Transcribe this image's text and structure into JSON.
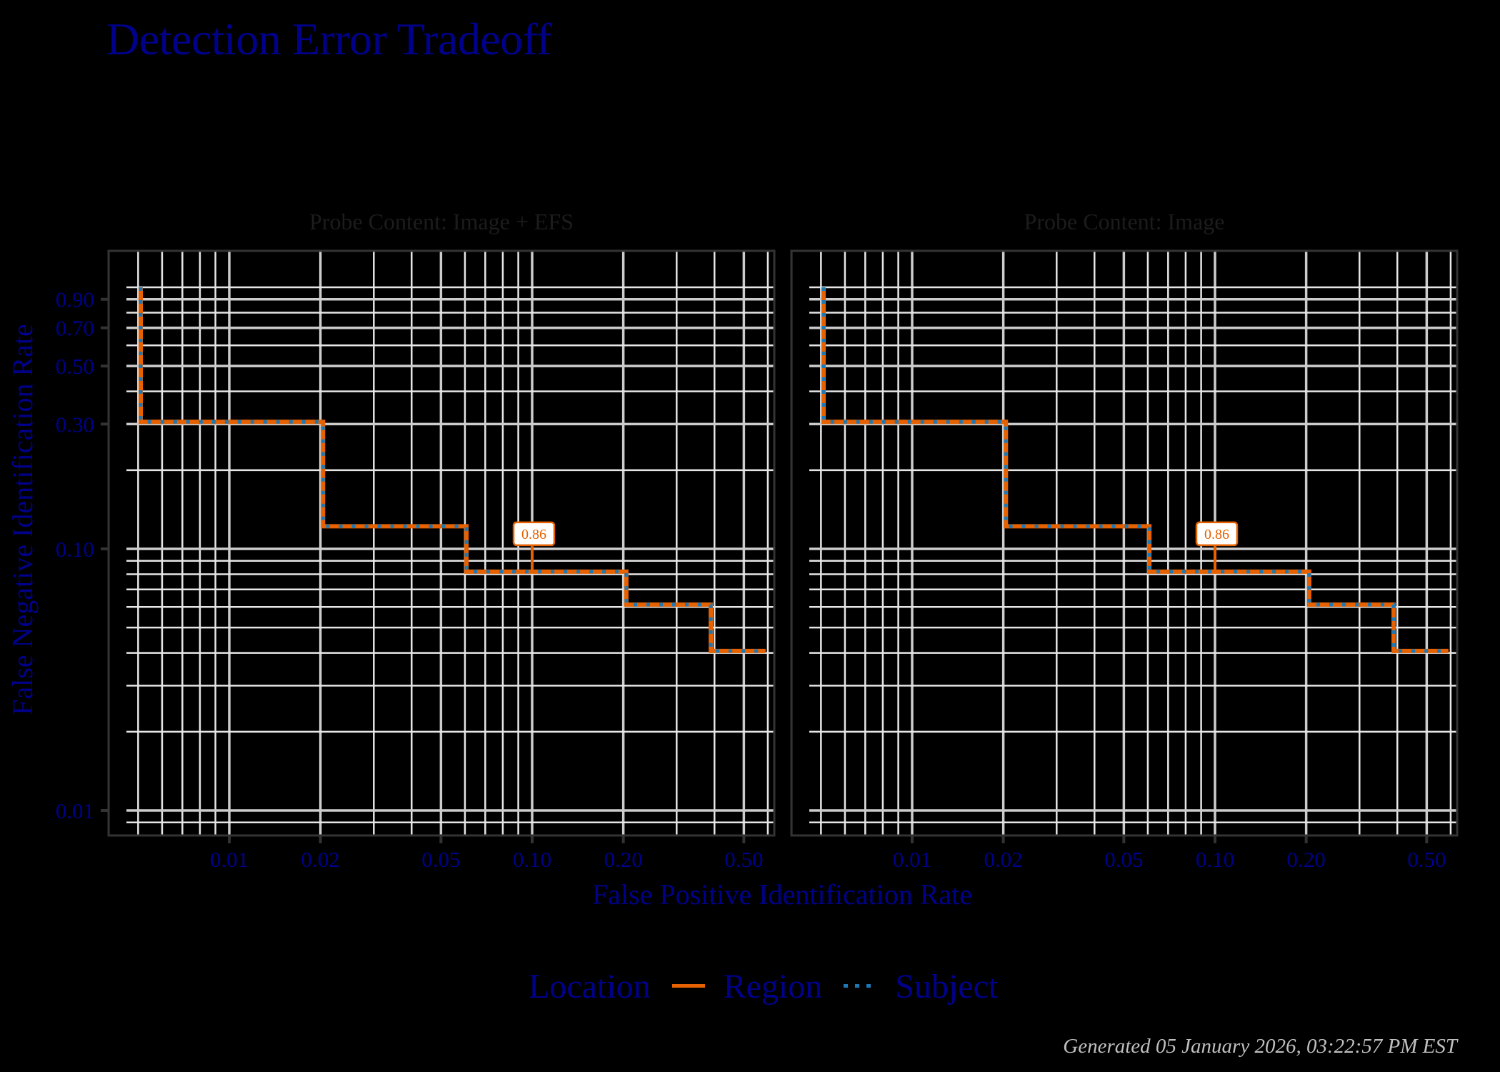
{
  "title": "Detection Error Tradeoff",
  "caption": "Generated 05 January 2026, 03:22:57 PM EST",
  "legend": {
    "title": "Location",
    "items": [
      {
        "label": "Region",
        "color": "#E66100",
        "style": "solid"
      },
      {
        "label": "Subject",
        "color": "#1F78B4",
        "style": "dotted"
      }
    ]
  },
  "colors": {
    "text": "#00008B",
    "background": "#000000",
    "grid": "#D9D9D9",
    "panel_border": "#333333",
    "strip_text": "#1C1C1C",
    "caption": "#BFBFBF",
    "region": "#E66100",
    "subject": "#1F78B4"
  },
  "chart_data": {
    "type": "line",
    "title": "Detection Error Tradeoff",
    "xlabel": "False Positive Identification Rate",
    "ylabel": "False Negative Identification Rate",
    "x_scale": "log10",
    "y_scale": "log10",
    "xlim": [
      0.0051,
      0.59
    ],
    "ylim": [
      0.0085,
      1.15
    ],
    "x_ticks": [
      0.01,
      0.02,
      0.05,
      0.1,
      0.2,
      0.5
    ],
    "x_tick_labels": [
      "0.01",
      "0.02",
      "0.05",
      "0.10",
      "0.20",
      "0.50"
    ],
    "y_ticks": [
      0.01,
      0.1,
      0.3,
      0.5,
      0.7,
      0.9
    ],
    "y_tick_labels": [
      "0.01",
      "0.10",
      "0.30",
      "0.50",
      "0.70",
      "0.90"
    ],
    "x_minor_grid": [
      0.003,
      0.004,
      0.005,
      0.006,
      0.007,
      0.008,
      0.009,
      0.03,
      0.04,
      0.06,
      0.07,
      0.08,
      0.09,
      0.3,
      0.4,
      0.6
    ],
    "y_minor_grid": [
      0.009,
      0.02,
      0.03,
      0.04,
      0.05,
      0.06,
      0.07,
      0.08,
      0.09,
      0.2,
      0.4,
      0.6,
      0.8,
      1.0
    ],
    "grid": true,
    "legend_position": "bottom",
    "facets": [
      {
        "strip": "Probe Content: Image + EFS",
        "series": [
          {
            "name": "Region",
            "step": true,
            "x": [
              0.0051,
              0.0051,
              0.0204,
              0.0204,
              0.0607,
              0.0607,
              0.2047,
              0.2047,
              0.389,
              0.389,
              0.59
            ],
            "y": [
              1.0,
              0.306,
              0.306,
              0.122,
              0.122,
              0.0818,
              0.0818,
              0.0612,
              0.0612,
              0.0407,
              0.0407
            ]
          },
          {
            "name": "Subject",
            "step": true,
            "x": [
              0.0051,
              0.0051,
              0.0204,
              0.0204,
              0.0607,
              0.0607,
              0.2047,
              0.2047,
              0.389,
              0.389,
              0.59
            ],
            "y": [
              1.0,
              0.306,
              0.306,
              0.122,
              0.122,
              0.0818,
              0.0818,
              0.0612,
              0.0612,
              0.0407,
              0.0407
            ]
          }
        ],
        "annotations": [
          {
            "x": 0.1,
            "y": 0.0818,
            "label": "0.86"
          }
        ]
      },
      {
        "strip": "Probe Content: Image",
        "series": [
          {
            "name": "Region",
            "step": true,
            "x": [
              0.0051,
              0.0051,
              0.0204,
              0.0204,
              0.0607,
              0.0607,
              0.2047,
              0.2047,
              0.389,
              0.389,
              0.59
            ],
            "y": [
              1.0,
              0.306,
              0.306,
              0.122,
              0.122,
              0.0818,
              0.0818,
              0.0612,
              0.0612,
              0.0407,
              0.0407
            ]
          },
          {
            "name": "Subject",
            "step": true,
            "x": [
              0.0051,
              0.0051,
              0.0204,
              0.0204,
              0.0607,
              0.0607,
              0.2047,
              0.2047,
              0.389,
              0.389,
              0.59
            ],
            "y": [
              1.0,
              0.306,
              0.306,
              0.122,
              0.122,
              0.0818,
              0.0818,
              0.0612,
              0.0612,
              0.0407,
              0.0407
            ]
          }
        ],
        "annotations": [
          {
            "x": 0.1,
            "y": 0.0818,
            "label": "0.86"
          }
        ]
      }
    ]
  }
}
